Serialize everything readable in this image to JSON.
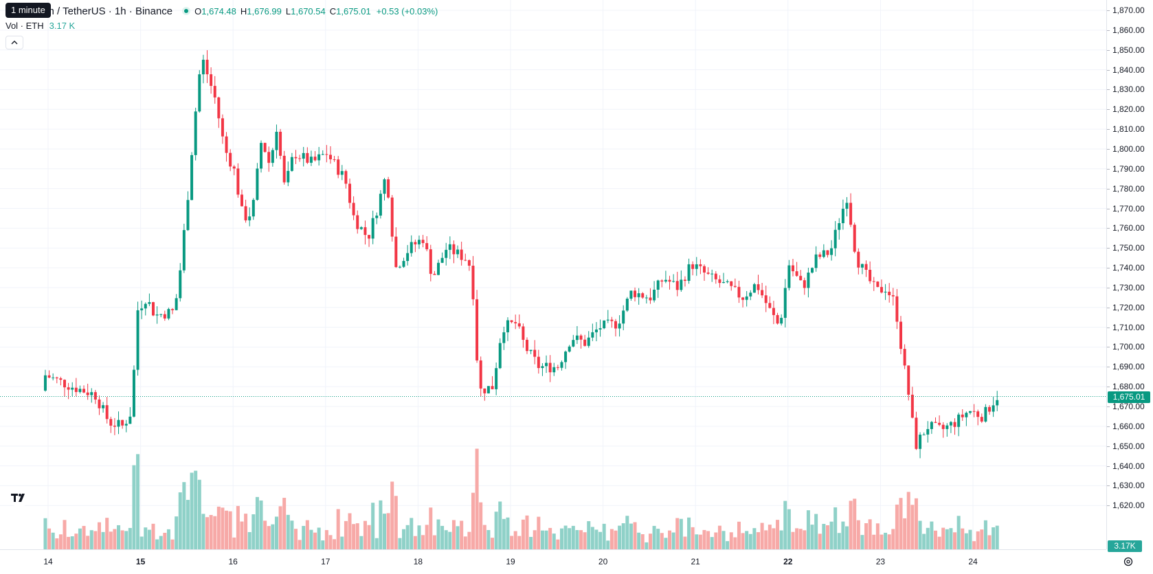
{
  "tooltip": "1 minute",
  "legend": {
    "symbol": "um / TetherUS · 1h · Binance",
    "open_key": "O",
    "open": "1,674.48",
    "high_key": "H",
    "high": "1,676.99",
    "low_key": "L",
    "low": "1,670.54",
    "close_key": "C",
    "close": "1,675.01",
    "change": "+0.53 (+0.03%)",
    "vol_label": "Vol · ETH",
    "vol_value": "3.17 K"
  },
  "price_scale": {
    "ticks": [
      "1,870.00",
      "1,860.00",
      "1,850.00",
      "1,840.00",
      "1,830.00",
      "1,820.00",
      "1,810.00",
      "1,800.00",
      "1,790.00",
      "1,780.00",
      "1,770.00",
      "1,760.00",
      "1,750.00",
      "1,740.00",
      "1,730.00",
      "1,720.00",
      "1,710.00",
      "1,700.00",
      "1,690.00",
      "1,680.00",
      "1,670.00",
      "1,660.00",
      "1,650.00",
      "1,640.00",
      "1,630.00",
      "1,620.00"
    ],
    "last_price": "1,675.01",
    "volume_badge": "3.17K"
  },
  "time_scale": {
    "labels": [
      {
        "text": "14",
        "bold": false
      },
      {
        "text": "15",
        "bold": true
      },
      {
        "text": "16",
        "bold": false
      },
      {
        "text": "17",
        "bold": false
      },
      {
        "text": "18",
        "bold": false
      },
      {
        "text": "19",
        "bold": false
      },
      {
        "text": "20",
        "bold": false
      },
      {
        "text": "21",
        "bold": false
      },
      {
        "text": "22",
        "bold": true
      },
      {
        "text": "23",
        "bold": false
      },
      {
        "text": "24",
        "bold": false
      }
    ]
  },
  "colors": {
    "up": "#089981",
    "down": "#f23645",
    "vol_up": "#8fd1c8",
    "vol_down": "#f7a9a7",
    "grid": "#f0f3fa"
  },
  "chart_data": {
    "type": "candlestick",
    "interval": "1h",
    "ylim": [
      1615,
      1875
    ],
    "keypoints": [
      {
        "day": 13.6,
        "price": 1678
      },
      {
        "day": 13.8,
        "price": 1674
      },
      {
        "day": 14.0,
        "price": 1686
      },
      {
        "day": 14.3,
        "price": 1680
      },
      {
        "day": 14.55,
        "price": 1676
      },
      {
        "day": 14.7,
        "price": 1662
      },
      {
        "day": 14.85,
        "price": 1660
      },
      {
        "day": 14.95,
        "price": 1668
      },
      {
        "day": 15.0,
        "price": 1718
      },
      {
        "day": 15.1,
        "price": 1725
      },
      {
        "day": 15.2,
        "price": 1716
      },
      {
        "day": 15.4,
        "price": 1718
      },
      {
        "day": 15.45,
        "price": 1730
      },
      {
        "day": 15.55,
        "price": 1775
      },
      {
        "day": 15.62,
        "price": 1812
      },
      {
        "day": 15.7,
        "price": 1847
      },
      {
        "day": 15.85,
        "price": 1825
      },
      {
        "day": 15.95,
        "price": 1800
      },
      {
        "day": 16.05,
        "price": 1790
      },
      {
        "day": 16.15,
        "price": 1765
      },
      {
        "day": 16.25,
        "price": 1768
      },
      {
        "day": 16.35,
        "price": 1805
      },
      {
        "day": 16.45,
        "price": 1790
      },
      {
        "day": 16.5,
        "price": 1815
      },
      {
        "day": 16.6,
        "price": 1780
      },
      {
        "day": 16.7,
        "price": 1798
      },
      {
        "day": 16.9,
        "price": 1793
      },
      {
        "day": 17.05,
        "price": 1798
      },
      {
        "day": 17.25,
        "price": 1785
      },
      {
        "day": 17.35,
        "price": 1765
      },
      {
        "day": 17.5,
        "price": 1755
      },
      {
        "day": 17.6,
        "price": 1770
      },
      {
        "day": 17.7,
        "price": 1788
      },
      {
        "day": 17.8,
        "price": 1740
      },
      {
        "day": 17.95,
        "price": 1750
      },
      {
        "day": 18.1,
        "price": 1755
      },
      {
        "day": 18.2,
        "price": 1735
      },
      {
        "day": 18.35,
        "price": 1750
      },
      {
        "day": 18.55,
        "price": 1745
      },
      {
        "day": 18.62,
        "price": 1740
      },
      {
        "day": 18.7,
        "price": 1678
      },
      {
        "day": 18.85,
        "price": 1680
      },
      {
        "day": 18.95,
        "price": 1710
      },
      {
        "day": 19.1,
        "price": 1712
      },
      {
        "day": 19.2,
        "price": 1700
      },
      {
        "day": 19.35,
        "price": 1690
      },
      {
        "day": 19.55,
        "price": 1690
      },
      {
        "day": 19.7,
        "price": 1705
      },
      {
        "day": 19.85,
        "price": 1702
      },
      {
        "day": 20.0,
        "price": 1710
      },
      {
        "day": 20.2,
        "price": 1712
      },
      {
        "day": 20.35,
        "price": 1728
      },
      {
        "day": 20.55,
        "price": 1725
      },
      {
        "day": 20.7,
        "price": 1735
      },
      {
        "day": 20.85,
        "price": 1730
      },
      {
        "day": 21.0,
        "price": 1742
      },
      {
        "day": 21.2,
        "price": 1735
      },
      {
        "day": 21.4,
        "price": 1730
      },
      {
        "day": 21.55,
        "price": 1725
      },
      {
        "day": 21.7,
        "price": 1732
      },
      {
        "day": 21.85,
        "price": 1718
      },
      {
        "day": 21.95,
        "price": 1710
      },
      {
        "day": 22.05,
        "price": 1742
      },
      {
        "day": 22.2,
        "price": 1730
      },
      {
        "day": 22.35,
        "price": 1745
      },
      {
        "day": 22.5,
        "price": 1748
      },
      {
        "day": 22.6,
        "price": 1765
      },
      {
        "day": 22.68,
        "price": 1776
      },
      {
        "day": 22.78,
        "price": 1745
      },
      {
        "day": 22.9,
        "price": 1735
      },
      {
        "day": 23.0,
        "price": 1728
      },
      {
        "day": 23.1,
        "price": 1730
      },
      {
        "day": 23.2,
        "price": 1722
      },
      {
        "day": 23.28,
        "price": 1695
      },
      {
        "day": 23.35,
        "price": 1675
      },
      {
        "day": 23.42,
        "price": 1650
      },
      {
        "day": 23.55,
        "price": 1660
      },
      {
        "day": 23.7,
        "price": 1658
      },
      {
        "day": 23.85,
        "price": 1662
      },
      {
        "day": 24.0,
        "price": 1668
      },
      {
        "day": 24.15,
        "price": 1665
      },
      {
        "day": 24.3,
        "price": 1675
      }
    ]
  }
}
